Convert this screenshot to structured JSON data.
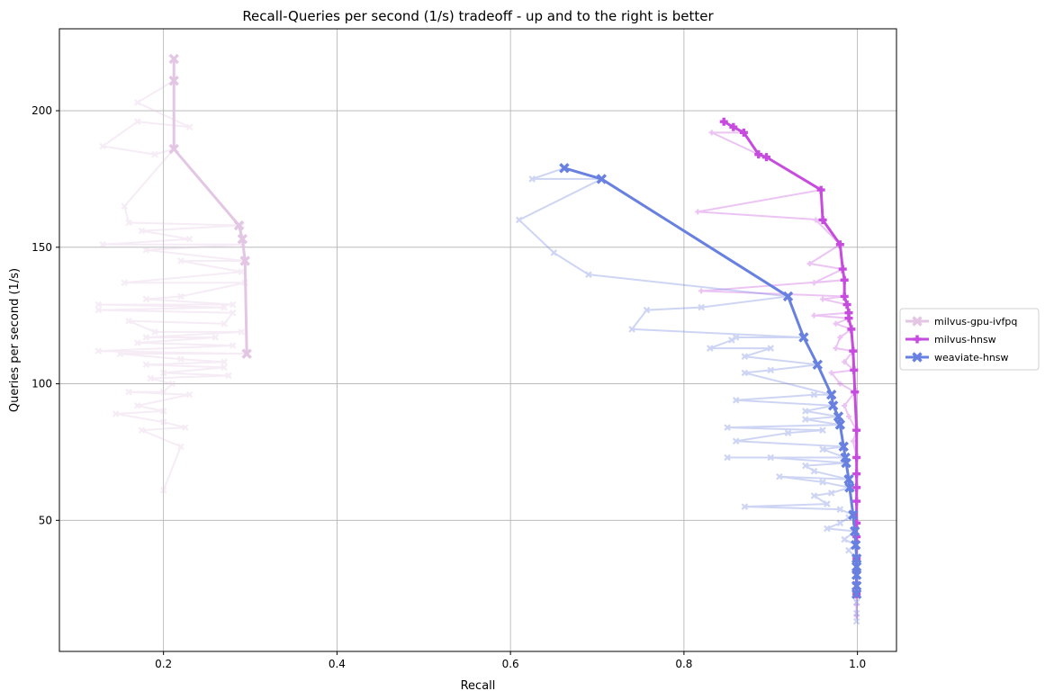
{
  "chart_data": {
    "type": "line",
    "title": "Recall-Queries per second (1/s) tradeoff - up and to the right is better",
    "xlabel": "Recall",
    "ylabel": "Queries per second (1/s)",
    "xlim": [
      0.08,
      1.045
    ],
    "ylim": [
      2,
      230
    ],
    "xticks": [
      0.2,
      0.4,
      0.6,
      0.8,
      1.0
    ],
    "xtick_labels": [
      "0.2",
      "0.4",
      "0.6",
      "0.8",
      "1.0"
    ],
    "yticks": [
      50,
      100,
      150,
      200
    ],
    "ytick_labels": [
      "50",
      "100",
      "150",
      "200"
    ],
    "grid": true,
    "legend_position": "outside-right",
    "series": [
      {
        "name": "milvus-gpu-ivfpq",
        "color": "#e3c6e3",
        "marker": "X",
        "pareto": [
          [
            0.212,
            219
          ],
          [
            0.212,
            211
          ],
          [
            0.212,
            186
          ],
          [
            0.287,
            158
          ],
          [
            0.291,
            153
          ],
          [
            0.294,
            145
          ],
          [
            0.296,
            111
          ]
        ],
        "raw": [
          [
            0.212,
            219
          ],
          [
            0.212,
            211
          ],
          [
            0.17,
            203
          ],
          [
            0.23,
            194
          ],
          [
            0.17,
            196
          ],
          [
            0.13,
            187
          ],
          [
            0.19,
            184
          ],
          [
            0.212,
            186
          ],
          [
            0.155,
            165
          ],
          [
            0.16,
            159
          ],
          [
            0.29,
            158
          ],
          [
            0.175,
            156
          ],
          [
            0.23,
            153
          ],
          [
            0.13,
            151
          ],
          [
            0.292,
            151
          ],
          [
            0.18,
            149
          ],
          [
            0.294,
            145
          ],
          [
            0.22,
            145
          ],
          [
            0.29,
            141
          ],
          [
            0.155,
            137
          ],
          [
            0.294,
            137
          ],
          [
            0.22,
            132
          ],
          [
            0.18,
            131
          ],
          [
            0.28,
            129
          ],
          [
            0.125,
            129
          ],
          [
            0.27,
            128
          ],
          [
            0.125,
            127
          ],
          [
            0.28,
            126
          ],
          [
            0.27,
            122
          ],
          [
            0.16,
            123
          ],
          [
            0.19,
            119
          ],
          [
            0.29,
            119
          ],
          [
            0.18,
            117
          ],
          [
            0.26,
            117
          ],
          [
            0.17,
            115
          ],
          [
            0.28,
            114
          ],
          [
            0.125,
            112
          ],
          [
            0.296,
            111
          ],
          [
            0.15,
            111
          ],
          [
            0.22,
            109
          ],
          [
            0.27,
            108
          ],
          [
            0.18,
            107
          ],
          [
            0.27,
            106
          ],
          [
            0.2,
            104
          ],
          [
            0.275,
            103
          ],
          [
            0.185,
            102
          ],
          [
            0.21,
            100
          ],
          [
            0.2,
            97
          ],
          [
            0.16,
            97
          ],
          [
            0.23,
            96
          ],
          [
            0.17,
            92
          ],
          [
            0.2,
            90
          ],
          [
            0.145,
            89
          ],
          [
            0.2,
            86
          ],
          [
            0.225,
            84
          ],
          [
            0.175,
            83
          ],
          [
            0.22,
            77
          ],
          [
            0.2,
            61
          ]
        ]
      },
      {
        "name": "milvus-hnsw",
        "color": "#c74bde",
        "marker": "P",
        "pareto": [
          [
            0.846,
            196
          ],
          [
            0.857,
            194
          ],
          [
            0.869,
            192
          ],
          [
            0.886,
            184
          ],
          [
            0.895,
            183
          ],
          [
            0.958,
            171
          ],
          [
            0.96,
            160
          ],
          [
            0.98,
            151
          ],
          [
            0.983,
            142
          ],
          [
            0.985,
            138
          ],
          [
            0.985,
            132
          ],
          [
            0.988,
            129
          ],
          [
            0.99,
            126
          ],
          [
            0.99,
            124
          ],
          [
            0.993,
            120
          ],
          [
            0.995,
            112
          ],
          [
            0.996,
            105
          ],
          [
            0.997,
            97
          ],
          [
            0.999,
            83
          ],
          [
            0.999,
            73
          ],
          [
            0.999,
            67
          ],
          [
            0.999,
            62
          ],
          [
            0.999,
            57
          ],
          [
            0.999,
            49
          ],
          [
            0.999,
            44
          ],
          [
            0.999,
            36
          ],
          [
            0.999,
            31
          ],
          [
            0.999,
            27
          ],
          [
            0.999,
            23
          ]
        ],
        "raw": [
          [
            0.846,
            196
          ],
          [
            0.857,
            194
          ],
          [
            0.869,
            192
          ],
          [
            0.832,
            192
          ],
          [
            0.886,
            184
          ],
          [
            0.895,
            183
          ],
          [
            0.958,
            171
          ],
          [
            0.816,
            163
          ],
          [
            0.96,
            160
          ],
          [
            0.952,
            160
          ],
          [
            0.98,
            151
          ],
          [
            0.945,
            144
          ],
          [
            0.983,
            142
          ],
          [
            0.95,
            137
          ],
          [
            0.985,
            138
          ],
          [
            0.82,
            134
          ],
          [
            0.985,
            132
          ],
          [
            0.96,
            131
          ],
          [
            0.988,
            129
          ],
          [
            0.99,
            126
          ],
          [
            0.95,
            125
          ],
          [
            0.99,
            124
          ],
          [
            0.975,
            122
          ],
          [
            0.993,
            120
          ],
          [
            0.98,
            117
          ],
          [
            0.975,
            113
          ],
          [
            0.995,
            112
          ],
          [
            0.985,
            108
          ],
          [
            0.996,
            105
          ],
          [
            0.97,
            104
          ],
          [
            0.98,
            100
          ],
          [
            0.997,
            97
          ],
          [
            0.985,
            92
          ],
          [
            0.99,
            88
          ],
          [
            0.999,
            83
          ],
          [
            0.995,
            79
          ],
          [
            0.999,
            73
          ],
          [
            0.999,
            67
          ],
          [
            0.999,
            62
          ],
          [
            0.999,
            57
          ],
          [
            0.999,
            49
          ],
          [
            0.999,
            44
          ],
          [
            0.999,
            40
          ],
          [
            0.999,
            36
          ],
          [
            0.999,
            31
          ],
          [
            0.999,
            27
          ],
          [
            0.999,
            23
          ],
          [
            0.999,
            19
          ],
          [
            0.999,
            15
          ]
        ]
      },
      {
        "name": "weaviate-hnsw",
        "color": "#6880e0",
        "marker": "X",
        "pareto": [
          [
            0.662,
            179
          ],
          [
            0.705,
            175
          ],
          [
            0.92,
            132
          ],
          [
            0.938,
            117
          ],
          [
            0.954,
            107
          ],
          [
            0.97,
            96
          ],
          [
            0.972,
            92
          ],
          [
            0.978,
            88
          ],
          [
            0.98,
            85
          ],
          [
            0.984,
            77
          ],
          [
            0.986,
            73
          ],
          [
            0.987,
            71
          ],
          [
            0.99,
            65
          ],
          [
            0.991,
            62
          ],
          [
            0.995,
            52
          ],
          [
            0.997,
            46
          ],
          [
            0.998,
            41
          ],
          [
            0.999,
            36
          ],
          [
            0.999,
            33
          ],
          [
            0.999,
            30
          ],
          [
            0.999,
            26
          ],
          [
            0.999,
            23
          ]
        ],
        "raw": [
          [
            0.662,
            179
          ],
          [
            0.625,
            175
          ],
          [
            0.705,
            175
          ],
          [
            0.61,
            160
          ],
          [
            0.65,
            148
          ],
          [
            0.69,
            140
          ],
          [
            0.92,
            132
          ],
          [
            0.82,
            128
          ],
          [
            0.757,
            127
          ],
          [
            0.74,
            120
          ],
          [
            0.938,
            117
          ],
          [
            0.86,
            117
          ],
          [
            0.855,
            116
          ],
          [
            0.83,
            113
          ],
          [
            0.9,
            113
          ],
          [
            0.87,
            110
          ],
          [
            0.954,
            107
          ],
          [
            0.9,
            105
          ],
          [
            0.87,
            104
          ],
          [
            0.97,
            96
          ],
          [
            0.95,
            96
          ],
          [
            0.86,
            94
          ],
          [
            0.972,
            92
          ],
          [
            0.94,
            90
          ],
          [
            0.978,
            88
          ],
          [
            0.94,
            87
          ],
          [
            0.98,
            85
          ],
          [
            0.85,
            84
          ],
          [
            0.96,
            83
          ],
          [
            0.92,
            82
          ],
          [
            0.86,
            79
          ],
          [
            0.984,
            77
          ],
          [
            0.96,
            76
          ],
          [
            0.986,
            73
          ],
          [
            0.85,
            73
          ],
          [
            0.9,
            73
          ],
          [
            0.987,
            71
          ],
          [
            0.94,
            70
          ],
          [
            0.95,
            68
          ],
          [
            0.99,
            65
          ],
          [
            0.91,
            66
          ],
          [
            0.96,
            64
          ],
          [
            0.991,
            62
          ],
          [
            0.97,
            60
          ],
          [
            0.95,
            59
          ],
          [
            0.965,
            56
          ],
          [
            0.87,
            55
          ],
          [
            0.98,
            54
          ],
          [
            0.995,
            52
          ],
          [
            0.99,
            51
          ],
          [
            0.98,
            49
          ],
          [
            0.965,
            47
          ],
          [
            0.997,
            46
          ],
          [
            0.985,
            43
          ],
          [
            0.998,
            41
          ],
          [
            0.99,
            39
          ],
          [
            0.999,
            36
          ],
          [
            0.999,
            33
          ],
          [
            0.999,
            30
          ],
          [
            0.999,
            26
          ],
          [
            0.999,
            23
          ],
          [
            0.999,
            20
          ],
          [
            0.999,
            16
          ],
          [
            0.999,
            13
          ]
        ]
      }
    ]
  }
}
